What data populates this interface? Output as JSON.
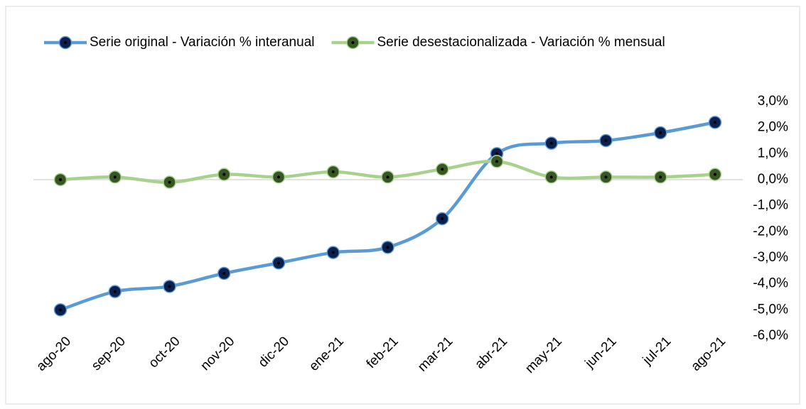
{
  "chart_data": {
    "type": "line",
    "categories": [
      "ago-20",
      "sep-20",
      "oct-20",
      "nov-20",
      "dic-20",
      "ene-21",
      "feb-21",
      "mar-21",
      "abr-21",
      "may-21",
      "jun-21",
      "jul-21",
      "ago-21"
    ],
    "series": [
      {
        "name": "Serie original - Variación % interanual",
        "color": "#5b9bd5",
        "marker_color": "#0d1f4d",
        "values": [
          -5.0,
          -4.3,
          -4.1,
          -3.6,
          -3.2,
          -2.8,
          -2.6,
          -1.5,
          1.0,
          1.4,
          1.5,
          1.8,
          2.2
        ]
      },
      {
        "name": "Serie desestacionalizada - Variación % mensual",
        "color": "#a9d18e",
        "marker_color": "#375623",
        "values": [
          0.0,
          0.1,
          -0.1,
          0.2,
          0.1,
          0.3,
          0.1,
          0.4,
          0.7,
          0.1,
          0.1,
          0.1,
          0.2
        ]
      }
    ],
    "ylim": [
      -6,
      3
    ],
    "yticks": [
      {
        "value": 3,
        "label": "3,0%"
      },
      {
        "value": 2,
        "label": "2,0%"
      },
      {
        "value": 1,
        "label": "1,0%"
      },
      {
        "value": 0,
        "label": "0,0%"
      },
      {
        "value": -1,
        "label": "-1,0%"
      },
      {
        "value": -2,
        "label": "-2,0%"
      },
      {
        "value": -3,
        "label": "-3,0%"
      },
      {
        "value": -4,
        "label": "-4,0%"
      },
      {
        "value": -5,
        "label": "-5,0%"
      },
      {
        "value": -6,
        "label": "-6,0%"
      }
    ],
    "y_axis_side": "right",
    "legend": "top",
    "smooth": true
  }
}
